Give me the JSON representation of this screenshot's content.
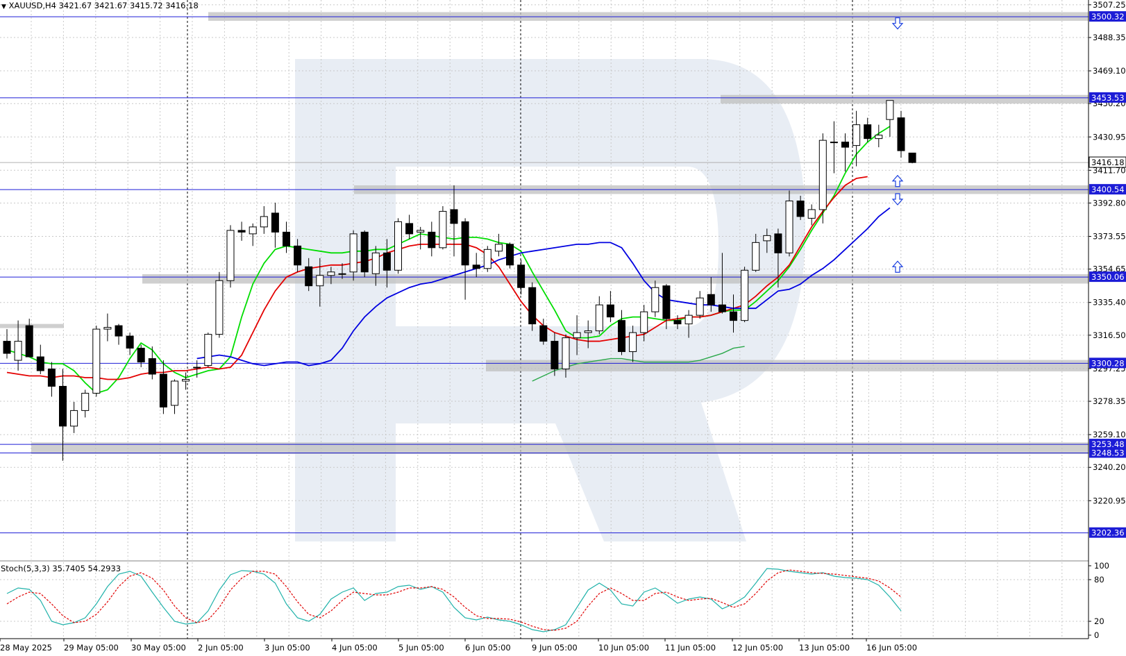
{
  "symbol_header": {
    "symbol": "XAUUSD,H4",
    "quote": "3421.67 3421.67 3415.72 3416.18"
  },
  "stoch_header": {
    "label": "Stoch(5,3,3) 35.7405 54.2933"
  },
  "colors": {
    "background": "#ffffff",
    "grid": "#c8c8c8",
    "candle_body": "#000000",
    "sma_green": "#00dd00",
    "sma_red": "#e40000",
    "sma_blue": "#0000e0",
    "sma_long": "#2aa84a",
    "level_line": "#1c1cd6",
    "zone": "#bfbfbf",
    "stoch_main": "#20b2aa",
    "stoch_signal": "#e00000",
    "watermark": "#e6ebf3"
  },
  "price_axis": {
    "ticks": [
      "3507.25",
      "3488.35",
      "3469.10",
      "3450.20",
      "3430.95",
      "3411.70",
      "3392.80",
      "3373.55",
      "3354.65",
      "3335.40",
      "3316.50",
      "3297.25",
      "3278.35",
      "3259.10",
      "3240.20",
      "3220.95"
    ],
    "current_price": "3416.18",
    "level_labels": [
      "3500.32",
      "3453.53",
      "3400.54",
      "3350.06",
      "3300.28",
      "3253.48",
      "3248.53",
      "3202.36"
    ]
  },
  "stoch_axis": {
    "ticks": [
      "100",
      "80",
      "20",
      "0"
    ]
  },
  "time_axis": {
    "labels": [
      "28 May 2025",
      "29 May 05:00",
      "30 May 05:00",
      "2 Jun 05:00",
      "3 Jun 05:00",
      "4 Jun 05:00",
      "5 Jun 05:00",
      "6 Jun 05:00",
      "9 Jun 05:00",
      "10 Jun 05:00",
      "11 Jun 05:00",
      "12 Jun 05:00",
      "13 Jun 05:00",
      "16 Jun 05:00"
    ]
  },
  "chart_data": [
    {
      "type": "candlestick",
      "title": "XAUUSD,H4",
      "y_range": [
        3187.0,
        3510.0
      ],
      "levels": [
        3500.32,
        3453.53,
        3400.54,
        3350.06,
        3300.28,
        3253.48,
        3248.53,
        3202.36
      ],
      "zones": [
        [
          3295.6,
          3302.2
        ],
        [
          3247.9,
          3254.6
        ],
        [
          3346.3,
          3351.7
        ],
        [
          3398.0,
          3403.0
        ],
        [
          3450.2,
          3455.2
        ],
        [
          3498.0,
          3503.0
        ],
        [
          3320.6,
          3323.0
        ]
      ],
      "signal_arrows": [
        {
          "direction": "down",
          "price": 3496.5
        },
        {
          "direction": "up",
          "price": 3405.5
        },
        {
          "direction": "down",
          "price": 3395.0
        },
        {
          "direction": "up",
          "price": 3356.0
        }
      ],
      "candles": [
        {
          "o": 3313.0,
          "h": 3320.0,
          "l": 3303.0,
          "c": 3306.0
        },
        {
          "o": 3302.0,
          "h": 3325.0,
          "l": 3296.0,
          "c": 3313.0
        },
        {
          "o": 3322.0,
          "h": 3326.0,
          "l": 3304.0,
          "c": 3304.0
        },
        {
          "o": 3304.0,
          "h": 3311.0,
          "l": 3294.0,
          "c": 3296.0
        },
        {
          "o": 3297.0,
          "h": 3301.0,
          "l": 3281.0,
          "c": 3287.0
        },
        {
          "o": 3287.0,
          "h": 3297.0,
          "l": 3244.0,
          "c": 3264.0
        },
        {
          "o": 3264.0,
          "h": 3278.0,
          "l": 3260.0,
          "c": 3273.0
        },
        {
          "o": 3273.0,
          "h": 3285.0,
          "l": 3269.0,
          "c": 3283.0
        },
        {
          "o": 3283.0,
          "h": 3322.0,
          "l": 3281.0,
          "c": 3320.0
        },
        {
          "o": 3320.0,
          "h": 3329.0,
          "l": 3313.0,
          "c": 3321.0
        },
        {
          "o": 3322.0,
          "h": 3323.0,
          "l": 3311.0,
          "c": 3316.0
        },
        {
          "o": 3316.0,
          "h": 3318.0,
          "l": 3305.0,
          "c": 3309.0
        },
        {
          "o": 3309.0,
          "h": 3311.0,
          "l": 3298.0,
          "c": 3301.0
        },
        {
          "o": 3303.0,
          "h": 3310.0,
          "l": 3291.0,
          "c": 3294.0
        },
        {
          "o": 3294.0,
          "h": 3302.0,
          "l": 3271.0,
          "c": 3275.0
        },
        {
          "o": 3276.0,
          "h": 3291.0,
          "l": 3271.0,
          "c": 3290.0
        },
        {
          "o": 3290.0,
          "h": 3295.0,
          "l": 3285.0,
          "c": 3291.0
        },
        {
          "o": 3298.0,
          "h": 3302.0,
          "l": 3292.0,
          "c": 3298.0
        },
        {
          "o": 3299.0,
          "h": 3318.0,
          "l": 3298.0,
          "c": 3317.0
        },
        {
          "o": 3317.0,
          "h": 3353.0,
          "l": 3315.0,
          "c": 3348.0
        },
        {
          "o": 3348.0,
          "h": 3380.0,
          "l": 3344.0,
          "c": 3377.0
        },
        {
          "o": 3377.0,
          "h": 3382.0,
          "l": 3371.0,
          "c": 3376.0
        },
        {
          "o": 3375.0,
          "h": 3381.0,
          "l": 3368.0,
          "c": 3379.0
        },
        {
          "o": 3379.0,
          "h": 3391.0,
          "l": 3375.0,
          "c": 3385.0
        },
        {
          "o": 3387.0,
          "h": 3393.0,
          "l": 3367.0,
          "c": 3376.0
        },
        {
          "o": 3376.0,
          "h": 3382.0,
          "l": 3364.0,
          "c": 3368.0
        },
        {
          "o": 3368.0,
          "h": 3372.0,
          "l": 3353.0,
          "c": 3357.0
        },
        {
          "o": 3356.0,
          "h": 3361.0,
          "l": 3342.0,
          "c": 3345.0
        },
        {
          "o": 3345.0,
          "h": 3361.0,
          "l": 3333.0,
          "c": 3351.0
        },
        {
          "o": 3351.0,
          "h": 3356.0,
          "l": 3346.0,
          "c": 3353.0
        },
        {
          "o": 3352.0,
          "h": 3358.0,
          "l": 3349.0,
          "c": 3352.0
        },
        {
          "o": 3353.0,
          "h": 3377.0,
          "l": 3348.0,
          "c": 3375.0
        },
        {
          "o": 3376.0,
          "h": 3377.0,
          "l": 3350.0,
          "c": 3353.0
        },
        {
          "o": 3352.0,
          "h": 3368.0,
          "l": 3345.0,
          "c": 3364.0
        },
        {
          "o": 3364.0,
          "h": 3372.0,
          "l": 3344.0,
          "c": 3354.0
        },
        {
          "o": 3354.0,
          "h": 3384.0,
          "l": 3352.0,
          "c": 3382.0
        },
        {
          "o": 3381.0,
          "h": 3386.0,
          "l": 3372.0,
          "c": 3375.0
        },
        {
          "o": 3376.0,
          "h": 3379.0,
          "l": 3366.0,
          "c": 3377.0
        },
        {
          "o": 3376.0,
          "h": 3382.0,
          "l": 3362.0,
          "c": 3367.0
        },
        {
          "o": 3367.0,
          "h": 3391.0,
          "l": 3366.0,
          "c": 3388.0
        },
        {
          "o": 3389.0,
          "h": 3403.0,
          "l": 3362.0,
          "c": 3381.0
        },
        {
          "o": 3382.0,
          "h": 3384.0,
          "l": 3337.0,
          "c": 3357.0
        },
        {
          "o": 3357.0,
          "h": 3364.0,
          "l": 3350.0,
          "c": 3355.0
        },
        {
          "o": 3355.0,
          "h": 3368.0,
          "l": 3353.0,
          "c": 3366.0
        },
        {
          "o": 3365.0,
          "h": 3375.0,
          "l": 3362.0,
          "c": 3369.0
        },
        {
          "o": 3369.0,
          "h": 3370.0,
          "l": 3355.0,
          "c": 3357.0
        },
        {
          "o": 3357.0,
          "h": 3360.0,
          "l": 3340.0,
          "c": 3344.0
        },
        {
          "o": 3344.0,
          "h": 3347.0,
          "l": 3319.0,
          "c": 3323.0
        },
        {
          "o": 3322.0,
          "h": 3326.0,
          "l": 3311.0,
          "c": 3313.0
        },
        {
          "o": 3313.0,
          "h": 3318.0,
          "l": 3293.0,
          "c": 3297.0
        },
        {
          "o": 3297.0,
          "h": 3317.0,
          "l": 3292.0,
          "c": 3315.0
        },
        {
          "o": 3315.0,
          "h": 3328.0,
          "l": 3305.0,
          "c": 3318.0
        },
        {
          "o": 3318.0,
          "h": 3325.0,
          "l": 3309.0,
          "c": 3319.0
        },
        {
          "o": 3319.0,
          "h": 3339.0,
          "l": 3317.0,
          "c": 3334.0
        },
        {
          "o": 3334.0,
          "h": 3342.0,
          "l": 3324.0,
          "c": 3327.0
        },
        {
          "o": 3325.0,
          "h": 3331.0,
          "l": 3305.0,
          "c": 3307.0
        },
        {
          "o": 3307.0,
          "h": 3322.0,
          "l": 3301.0,
          "c": 3318.0
        },
        {
          "o": 3318.0,
          "h": 3334.0,
          "l": 3313.0,
          "c": 3330.0
        },
        {
          "o": 3330.0,
          "h": 3348.0,
          "l": 3327.0,
          "c": 3344.0
        },
        {
          "o": 3345.0,
          "h": 3346.0,
          "l": 3320.0,
          "c": 3326.0
        },
        {
          "o": 3325.0,
          "h": 3328.0,
          "l": 3320.0,
          "c": 3323.0
        },
        {
          "o": 3323.0,
          "h": 3331.0,
          "l": 3315.0,
          "c": 3328.0
        },
        {
          "o": 3328.0,
          "h": 3342.0,
          "l": 3326.0,
          "c": 3338.0
        },
        {
          "o": 3340.0,
          "h": 3350.0,
          "l": 3330.0,
          "c": 3334.0
        },
        {
          "o": 3334.0,
          "h": 3364.0,
          "l": 3329.0,
          "c": 3330.0
        },
        {
          "o": 3330.0,
          "h": 3340.0,
          "l": 3318.0,
          "c": 3325.0
        },
        {
          "o": 3325.0,
          "h": 3356.0,
          "l": 3324.0,
          "c": 3354.0
        },
        {
          "o": 3354.0,
          "h": 3375.0,
          "l": 3353.0,
          "c": 3370.0
        },
        {
          "o": 3371.0,
          "h": 3378.0,
          "l": 3364.0,
          "c": 3374.0
        },
        {
          "o": 3375.0,
          "h": 3378.0,
          "l": 3344.0,
          "c": 3364.0
        },
        {
          "o": 3364.0,
          "h": 3400.0,
          "l": 3362.0,
          "c": 3394.0
        },
        {
          "o": 3394.0,
          "h": 3397.0,
          "l": 3383.0,
          "c": 3385.0
        },
        {
          "o": 3384.0,
          "h": 3392.0,
          "l": 3380.0,
          "c": 3389.0
        },
        {
          "o": 3389.0,
          "h": 3433.0,
          "l": 3381.0,
          "c": 3429.0
        },
        {
          "o": 3428.0,
          "h": 3440.0,
          "l": 3410.0,
          "c": 3428.0
        },
        {
          "o": 3428.0,
          "h": 3433.0,
          "l": 3411.0,
          "c": 3425.0
        },
        {
          "o": 3426.0,
          "h": 3446.0,
          "l": 3414.0,
          "c": 3438.0
        },
        {
          "o": 3438.0,
          "h": 3442.0,
          "l": 3428.0,
          "c": 3430.0
        },
        {
          "o": 3430.0,
          "h": 3438.0,
          "l": 3425.0,
          "c": 3432.0
        },
        {
          "o": 3441.0,
          "h": 3452.0,
          "l": 3431.0,
          "c": 3452.0
        },
        {
          "o": 3442.0,
          "h": 3446.0,
          "l": 3419.0,
          "c": 3423.0
        },
        {
          "o": 3421.67,
          "h": 3421.67,
          "l": 3415.72,
          "c": 3416.18
        }
      ],
      "moving_averages": [
        {
          "color": "#00dd00",
          "values": [
            3308,
            3306,
            3304,
            3301,
            3300,
            3300,
            3296,
            3289,
            3283,
            3285,
            3292,
            3303,
            3312,
            3308,
            3300,
            3295,
            3292,
            3294,
            3296,
            3297,
            3304,
            3327,
            3346,
            3358,
            3366,
            3368,
            3367,
            3366,
            3365,
            3364,
            3364,
            3365,
            3365,
            3366,
            3366,
            3369,
            3372,
            3375,
            3374,
            3373,
            3372,
            3373,
            3373,
            3372,
            3370,
            3369,
            3365,
            3353,
            3342,
            3331,
            3319,
            3315,
            3315,
            3316,
            3322,
            3326,
            3327,
            3327,
            3326,
            3325,
            3325,
            3327,
            3327,
            3328,
            3330,
            3331,
            3331,
            3336,
            3342,
            3348,
            3356,
            3366,
            3377,
            3387,
            3397,
            3410,
            3421,
            3428,
            3433,
            3437
          ]
        },
        {
          "color": "#e40000",
          "values": [
            3295,
            3294,
            3293,
            3293,
            3292,
            3293,
            3293,
            3292,
            3292,
            3291,
            3291,
            3292,
            3294,
            3295,
            3295,
            3296,
            3296,
            3297,
            3298,
            3297,
            3298,
            3305,
            3318,
            3331,
            3342,
            3350,
            3353,
            3355,
            3356,
            3357,
            3357,
            3358,
            3359,
            3361,
            3364,
            3366,
            3368,
            3369,
            3369,
            3369,
            3369,
            3369,
            3367,
            3363,
            3356,
            3346,
            3336,
            3328,
            3322,
            3318,
            3316,
            3314,
            3313,
            3313,
            3314,
            3315,
            3316,
            3317,
            3321,
            3325,
            3326,
            3327,
            3327,
            3328,
            3330,
            3332,
            3334,
            3339,
            3345,
            3350,
            3357,
            3368,
            3379,
            3388,
            3396,
            3403,
            3407,
            3408
          ]
        },
        {
          "color": "#0000e0",
          "values": [
            3303,
            3304,
            3305,
            3304,
            3302,
            3300,
            3299,
            3300,
            3301,
            3301,
            3299,
            3300,
            3302,
            3309,
            3319,
            3327,
            3333,
            3338,
            3341,
            3344,
            3346,
            3347,
            3349,
            3351,
            3353,
            3355,
            3357,
            3360,
            3362,
            3364,
            3365,
            3366,
            3367,
            3368,
            3369,
            3369,
            3370,
            3370,
            3367,
            3358,
            3348,
            3341,
            3337,
            3336,
            3335,
            3334,
            3334,
            3333,
            3332,
            3332,
            3332,
            3337,
            3342,
            3343,
            3346,
            3351,
            3355,
            3360,
            3366,
            3372,
            3378,
            3385,
            3390
          ]
        },
        {
          "color": "#2aa84a",
          "values": [
            3290,
            3293,
            3296,
            3298,
            3300,
            3301,
            3302,
            3303,
            3303,
            3302,
            3301,
            3301,
            3301,
            3301,
            3301,
            3302,
            3304,
            3306,
            3309,
            3310
          ]
        }
      ],
      "ma_offsets": [
        0,
        0,
        17,
        47
      ]
    },
    {
      "type": "line",
      "title": "Stoch(5,3,3) 35.7405 54.2933",
      "y_range": [
        0,
        100
      ],
      "levels": [
        80,
        20
      ],
      "series": [
        {
          "name": "Stoch(5,3,3)",
          "values": [
            60,
            68,
            66,
            50,
            20,
            15,
            18,
            25,
            45,
            70,
            88,
            92,
            85,
            62,
            40,
            20,
            16,
            18,
            35,
            65,
            87,
            93,
            92,
            88,
            75,
            45,
            25,
            20,
            30,
            52,
            62,
            68,
            50,
            60,
            62,
            70,
            72,
            66,
            70,
            62,
            40,
            25,
            22,
            26,
            22,
            20,
            15,
            8,
            5,
            8,
            15,
            40,
            65,
            75,
            65,
            45,
            42,
            62,
            68,
            58,
            46,
            52,
            55,
            52,
            38,
            45,
            55,
            75,
            96,
            95,
            92,
            90,
            88,
            90,
            85,
            83,
            82,
            80,
            72,
            55,
            35
          ]
        },
        {
          "name": "",
          "values": [
            45,
            55,
            62,
            60,
            45,
            28,
            18,
            20,
            30,
            48,
            70,
            85,
            90,
            82,
            65,
            42,
            25,
            18,
            22,
            40,
            65,
            82,
            92,
            92,
            88,
            70,
            48,
            30,
            25,
            35,
            50,
            62,
            60,
            58,
            58,
            62,
            68,
            68,
            70,
            66,
            55,
            40,
            28,
            24,
            24,
            23,
            19,
            13,
            8,
            7,
            10,
            20,
            42,
            60,
            68,
            60,
            50,
            50,
            60,
            62,
            55,
            50,
            52,
            53,
            47,
            40,
            45,
            60,
            78,
            90,
            94,
            92,
            90,
            89,
            88,
            86,
            84,
            82,
            78,
            68,
            55
          ]
        }
      ]
    }
  ]
}
